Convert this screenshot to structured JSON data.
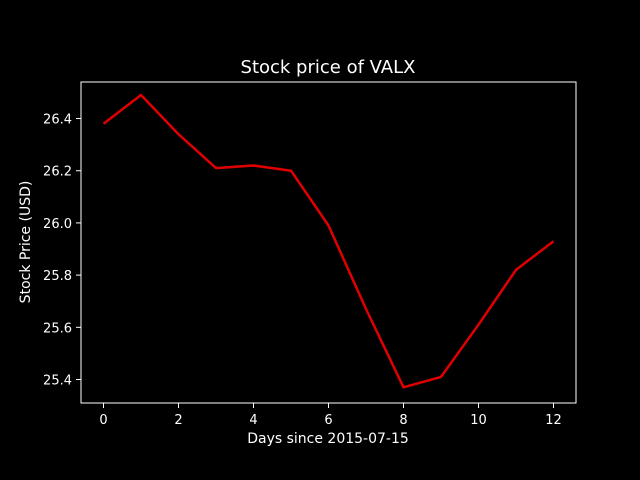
{
  "chart_data": {
    "type": "line",
    "title": "Stock price of VALX",
    "xlabel": "Days since 2015-07-15",
    "ylabel": "Stock Price (USD)",
    "xlim": [
      -0.6,
      12.6
    ],
    "ylim": [
      25.31,
      26.54
    ],
    "x_ticks": [
      0,
      2,
      4,
      6,
      8,
      10,
      12
    ],
    "x_tick_labels": [
      "0",
      "2",
      "4",
      "6",
      "8",
      "10",
      "12"
    ],
    "y_ticks": [
      25.4,
      25.6,
      25.8,
      26.0,
      26.2,
      26.4
    ],
    "y_tick_labels": [
      "25.4",
      "25.6",
      "25.8",
      "26.0",
      "26.2",
      "26.4"
    ],
    "grid": false,
    "legend": "none",
    "background_color": "#000000",
    "axes_color": "#ffffff",
    "series": [
      {
        "color": "#e00000",
        "x": [
          0,
          1,
          2,
          3,
          4,
          5,
          6,
          7,
          8,
          9,
          10,
          11,
          12
        ],
        "values": [
          26.38,
          26.49,
          26.34,
          26.21,
          26.22,
          26.2,
          25.99,
          25.67,
          25.37,
          25.41,
          25.61,
          25.82,
          25.93
        ]
      }
    ]
  }
}
